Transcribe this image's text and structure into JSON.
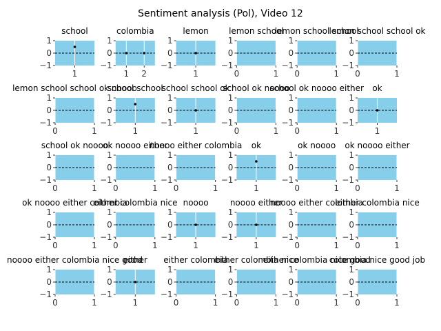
{
  "chart_data": {
    "type": "scatter",
    "title": "Sentiment analysis (Pol), Video 12",
    "panel_background": "#87ceeb",
    "point_color": "#000000",
    "reference_line": {
      "y": 0,
      "style": "dashed",
      "color": "#000000"
    },
    "ylim": [
      -1,
      1
    ],
    "yticks": [
      -1,
      0,
      1
    ],
    "grid": "vertical at x ticks (white)",
    "panels": [
      {
        "title": "school",
        "xlim": [
          0.4,
          1.6
        ],
        "xticks": [
          1
        ],
        "points": [
          {
            "x": 1,
            "y": 0.5
          }
        ]
      },
      {
        "title": "colombia",
        "xlim": [
          0.4,
          2.6
        ],
        "xticks": [
          1,
          2
        ],
        "points": [
          {
            "x": 1,
            "y": 0
          },
          {
            "x": 2,
            "y": 0
          }
        ]
      },
      {
        "title": "lemon",
        "xlim": [
          0,
          2
        ],
        "xticks": [
          1
        ],
        "points": [
          {
            "x": 1,
            "y": 0
          }
        ]
      },
      {
        "title": "lemon school",
        "xlim": [
          0,
          1
        ],
        "xticks": [
          0,
          1
        ],
        "points": []
      },
      {
        "title": "lemon school school",
        "xlim": [
          0,
          1
        ],
        "xticks": [
          0,
          1
        ],
        "points": []
      },
      {
        "title": "lemon school school ok",
        "xlim": [
          0,
          1
        ],
        "xticks": [
          0,
          1
        ],
        "points": []
      },
      {
        "title": "lemon school school ok noooo",
        "xlim": [
          0,
          1
        ],
        "xticks": [
          0,
          1
        ],
        "points": []
      },
      {
        "title": "school school",
        "xlim": [
          0.4,
          1.6
        ],
        "xticks": [
          1
        ],
        "points": [
          {
            "x": 1,
            "y": 0.5
          }
        ]
      },
      {
        "title": "school school ok",
        "xlim": [
          0,
          2
        ],
        "xticks": [
          1
        ],
        "points": [
          {
            "x": 1,
            "y": 0
          }
        ]
      },
      {
        "title": "school ok noooo",
        "xlim": [
          0,
          1
        ],
        "xticks": [
          0,
          1
        ],
        "points": []
      },
      {
        "title": "school ok noooo either",
        "xlim": [
          0,
          1
        ],
        "xticks": [
          0,
          1
        ],
        "points": []
      },
      {
        "title": "ok",
        "xlim": [
          0,
          2
        ],
        "xticks": [
          1
        ],
        "points": [
          {
            "x": 1,
            "y": 0
          }
        ]
      },
      {
        "title": "school ok noooo",
        "xlim": [
          0,
          1
        ],
        "xticks": [
          0,
          1
        ],
        "points": []
      },
      {
        "title": "ok noooo either",
        "xlim": [
          0,
          1
        ],
        "xticks": [
          0,
          1
        ],
        "points": []
      },
      {
        "title": "noooo either colombia",
        "xlim": [
          0,
          1
        ],
        "xticks": [
          0,
          1
        ],
        "points": []
      },
      {
        "title": "ok",
        "xlim": [
          0,
          2
        ],
        "xticks": [
          1
        ],
        "points": [
          {
            "x": 1,
            "y": 0.5
          }
        ]
      },
      {
        "title": "ok noooo",
        "xlim": [
          0,
          1
        ],
        "xticks": [
          0,
          1
        ],
        "points": []
      },
      {
        "title": "ok noooo either",
        "xlim": [
          0,
          1
        ],
        "xticks": [
          0,
          1
        ],
        "points": []
      },
      {
        "title": "ok noooo either colombia",
        "xlim": [
          0,
          1
        ],
        "xticks": [
          0,
          1
        ],
        "points": []
      },
      {
        "title": "either colombia nice",
        "xlim": [
          0,
          1
        ],
        "xticks": [
          0,
          1
        ],
        "points": []
      },
      {
        "title": "noooo",
        "xlim": [
          0,
          2
        ],
        "xticks": [
          1
        ],
        "points": [
          {
            "x": 1,
            "y": 0
          }
        ]
      },
      {
        "title": "noooo either",
        "xlim": [
          0,
          2
        ],
        "xticks": [
          1
        ],
        "points": [
          {
            "x": 1,
            "y": 0
          }
        ]
      },
      {
        "title": "noooo either colombia",
        "xlim": [
          0,
          1
        ],
        "xticks": [
          0,
          1
        ],
        "points": []
      },
      {
        "title": "either colombia nice",
        "xlim": [
          0,
          1
        ],
        "xticks": [
          0,
          1
        ],
        "points": []
      },
      {
        "title": "noooo either colombia nice good",
        "xlim": [
          0,
          1
        ],
        "xticks": [
          0,
          1
        ],
        "points": []
      },
      {
        "title": "either",
        "xlim": [
          0,
          2
        ],
        "xticks": [
          1
        ],
        "points": [
          {
            "x": 1,
            "y": 0
          }
        ]
      },
      {
        "title": "either colombia",
        "xlim": [
          0,
          1
        ],
        "xticks": [
          0,
          1
        ],
        "points": []
      },
      {
        "title": "either colombia nice",
        "xlim": [
          0,
          1
        ],
        "xticks": [
          0,
          1
        ],
        "points": []
      },
      {
        "title": "either colombia nice good",
        "xlim": [
          0,
          1
        ],
        "xticks": [
          0,
          1
        ],
        "points": []
      },
      {
        "title": "colombia nice good job",
        "xlim": [
          0,
          1
        ],
        "xticks": [
          0,
          1
        ],
        "points": []
      }
    ]
  }
}
